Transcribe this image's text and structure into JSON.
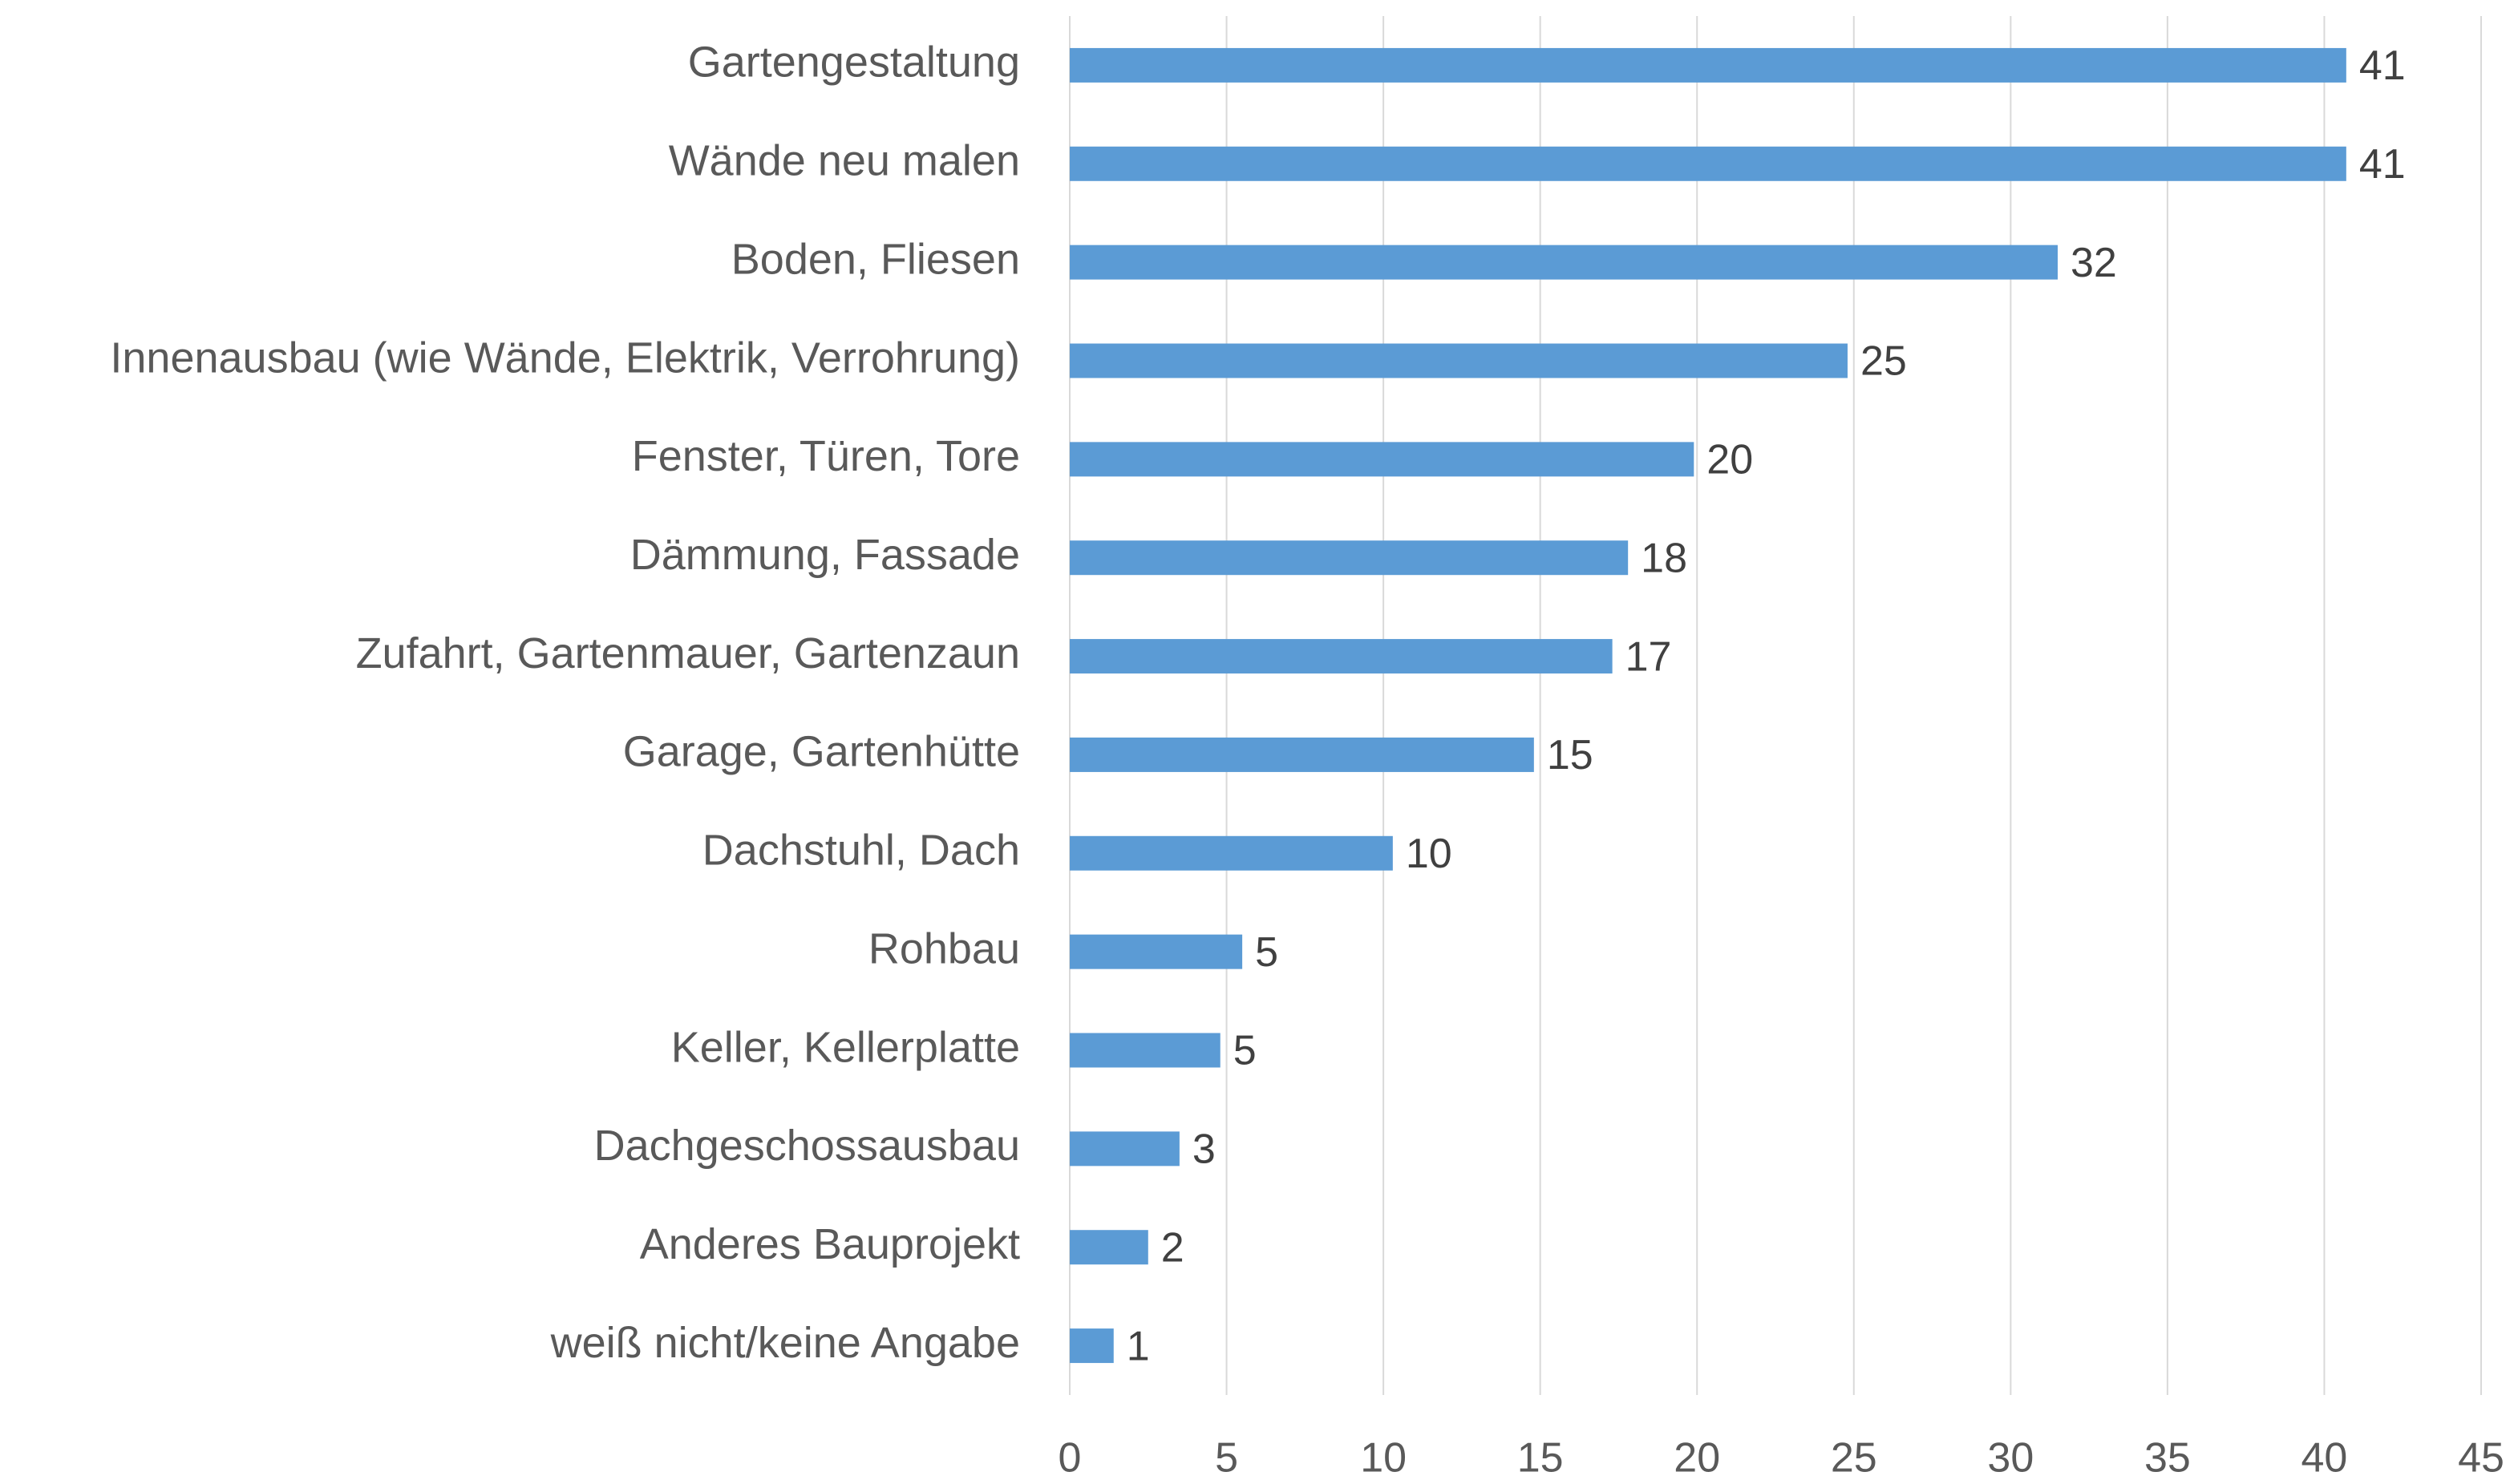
{
  "chart_data": {
    "type": "bar",
    "orientation": "horizontal",
    "categories": [
      "Gartengestaltung",
      "Wände neu malen",
      "Boden, Fliesen",
      "Innenausbau (wie Wände, Elektrik, Verrohrung)",
      "Fenster, Türen, Tore",
      "Dämmung, Fassade",
      "Zufahrt, Gartenmauer, Gartenzaun",
      "Garage, Gartenhütte",
      "Dachstuhl, Dach",
      "Rohbau",
      "Keller, Kellerplatte",
      "Dachgeschossausbau",
      "Anderes Bauprojekt",
      "weiß nicht/keine Angabe"
    ],
    "values": [
      40.7,
      40.7,
      31.5,
      24.8,
      19.9,
      17.8,
      17.3,
      14.8,
      10.3,
      5.5,
      4.8,
      3.5,
      2.5,
      1.4
    ],
    "value_labels": [
      "41",
      "41",
      "32",
      "25",
      "20",
      "18",
      "17",
      "15",
      "10",
      "5",
      "5",
      "3",
      "2",
      "1"
    ],
    "color": "#5b9bd5",
    "xlim": [
      0,
      45
    ],
    "xticks": [
      0,
      5,
      10,
      15,
      20,
      25,
      30,
      35,
      40,
      45
    ],
    "grid": true
  }
}
